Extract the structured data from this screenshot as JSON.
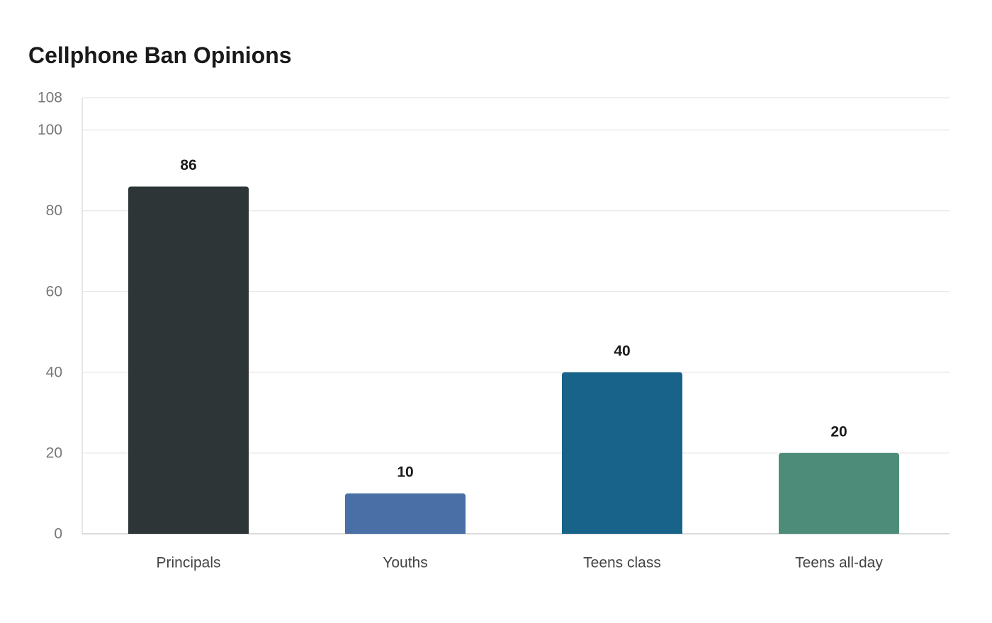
{
  "chart_data": {
    "type": "bar",
    "title": "Cellphone Ban Opinions",
    "xlabel": "",
    "ylabel": "",
    "categories": [
      "Principals",
      "Youths",
      "Teens class",
      "Teens all-day"
    ],
    "values": [
      86,
      10,
      40,
      20
    ],
    "colors": [
      "#2d3537",
      "#4a6fa6",
      "#186389",
      "#4e8c7a"
    ],
    "ylim": [
      0,
      108
    ],
    "yticks": [
      0,
      20,
      40,
      60,
      80,
      100,
      108
    ],
    "grid": true,
    "legend": "none",
    "data_labels": true
  }
}
